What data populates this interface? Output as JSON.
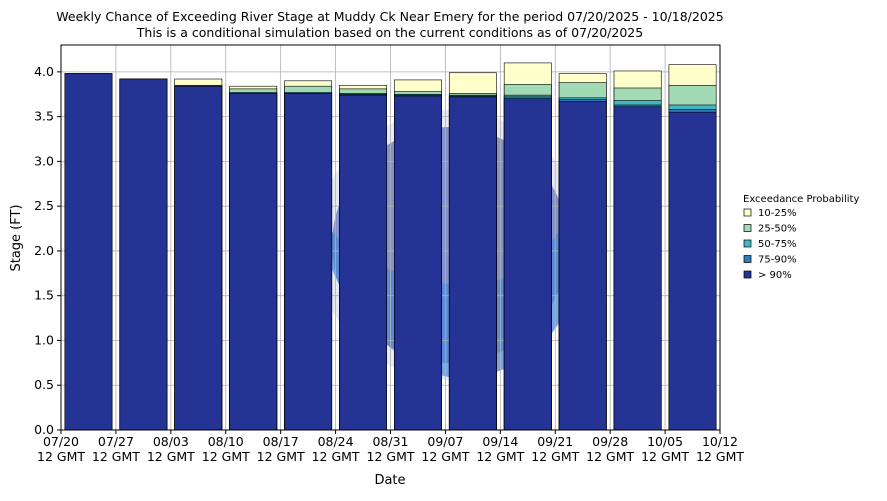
{
  "chart_data": {
    "type": "bar",
    "title": "Weekly Chance of Exceeding River Stage at Muddy Ck Near Emery for the period 07/20/2025 - 10/18/2025",
    "subtitle": "This is a conditional simulation based on the current conditions as of 07/20/2025",
    "xlabel": "Date",
    "ylabel": "Stage (FT)",
    "ylim": [
      0,
      4.3
    ],
    "yticks": [
      "0.0",
      "0.5",
      "1.0",
      "1.5",
      "2.0",
      "2.5",
      "3.0",
      "3.5",
      "4.0"
    ],
    "xtick_labels": [
      [
        "07/20",
        "12 GMT"
      ],
      [
        "07/27",
        "12 GMT"
      ],
      [
        "08/03",
        "12 GMT"
      ],
      [
        "08/10",
        "12 GMT"
      ],
      [
        "08/17",
        "12 GMT"
      ],
      [
        "08/24",
        "12 GMT"
      ],
      [
        "08/31",
        "12 GMT"
      ],
      [
        "09/07",
        "12 GMT"
      ],
      [
        "09/14",
        "12 GMT"
      ],
      [
        "09/21",
        "12 GMT"
      ],
      [
        "09/28",
        "12 GMT"
      ],
      [
        "10/05",
        "12 GMT"
      ],
      [
        "10/12",
        "12 GMT"
      ]
    ],
    "grid": true,
    "legend_title": "Exceedance Probability",
    "legend_position": "right",
    "series": [
      {
        "name": "10-25%",
        "color": "#ffffcc",
        "values": [
          3.98,
          3.92,
          3.92,
          3.84,
          3.9,
          3.85,
          3.91,
          3.99,
          4.1,
          3.98,
          4.01,
          4.08
        ]
      },
      {
        "name": "25-50%",
        "color": "#a1dab4",
        "values": [
          3.98,
          3.92,
          3.85,
          3.81,
          3.84,
          3.81,
          3.78,
          3.76,
          3.86,
          3.88,
          3.82,
          3.85
        ]
      },
      {
        "name": "50-75%",
        "color": "#41b6c4",
        "values": [
          3.98,
          3.92,
          3.84,
          3.77,
          3.77,
          3.76,
          3.75,
          3.74,
          3.74,
          3.71,
          3.68,
          3.63
        ]
      },
      {
        "name": "75-90%",
        "color": "#2c7fb8",
        "values": [
          3.98,
          3.92,
          3.84,
          3.76,
          3.76,
          3.75,
          3.74,
          3.73,
          3.72,
          3.69,
          3.63,
          3.58
        ]
      },
      {
        "name": "> 90%",
        "color": "#253494",
        "values": [
          3.98,
          3.92,
          3.84,
          3.76,
          3.76,
          3.74,
          3.73,
          3.72,
          3.7,
          3.67,
          3.61,
          3.55
        ]
      }
    ]
  }
}
